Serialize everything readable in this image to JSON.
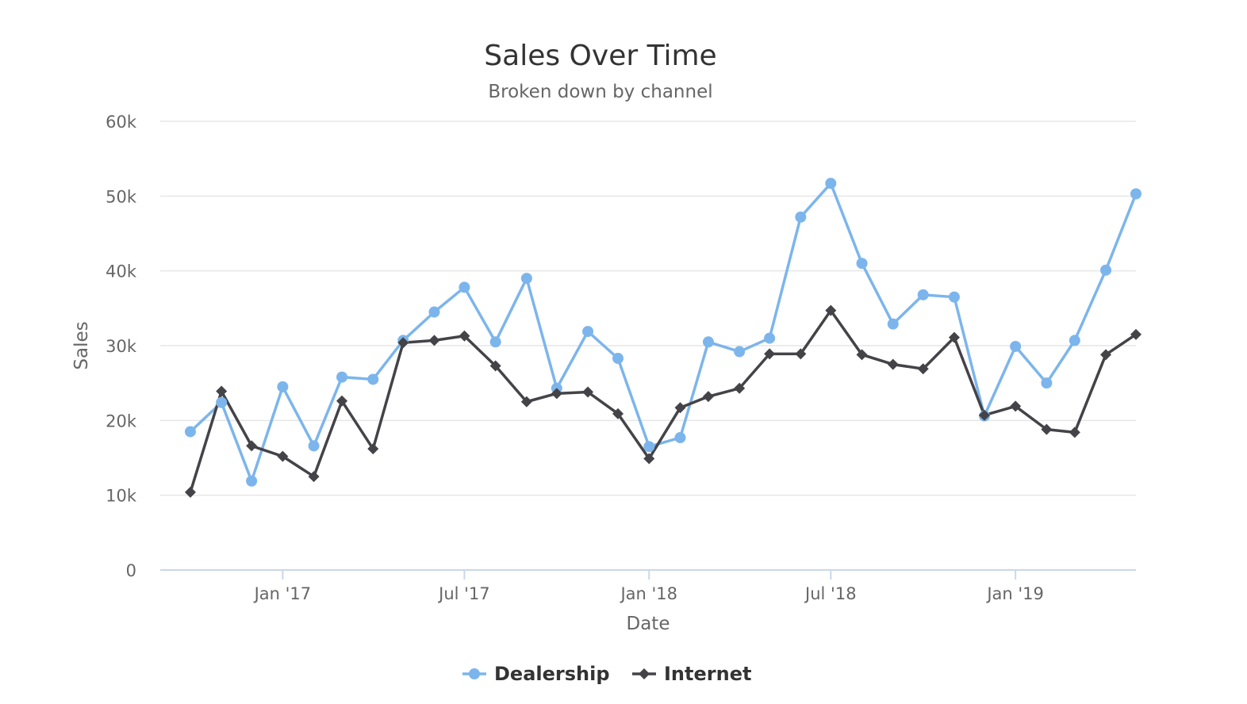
{
  "chart_data": {
    "type": "line",
    "title": "Sales Over Time",
    "subtitle": "Broken down by channel",
    "xlabel": "Date",
    "ylabel": "Sales",
    "ylim": [
      0,
      60000
    ],
    "xlim": [
      "2016-09-01",
      "2019-05-01"
    ],
    "y_ticks": [
      0,
      10000,
      20000,
      30000,
      40000,
      50000,
      60000
    ],
    "y_tick_labels": [
      "0",
      "10k",
      "20k",
      "30k",
      "40k",
      "50k",
      "60k"
    ],
    "x_ticks": [
      "2017-01-01",
      "2017-07-01",
      "2018-01-01",
      "2018-07-01",
      "2019-01-01"
    ],
    "x_tick_labels": [
      "Jan '17",
      "Jul '17",
      "Jan '18",
      "Jul '18",
      "Jan '19"
    ],
    "grid": true,
    "legend": "bottom-center",
    "x": [
      "2016-10-01",
      "2016-11-01",
      "2016-12-01",
      "2017-01-01",
      "2017-02-01",
      "2017-03-01",
      "2017-04-01",
      "2017-05-01",
      "2017-06-01",
      "2017-07-01",
      "2017-08-01",
      "2017-09-01",
      "2017-10-01",
      "2017-11-01",
      "2017-12-01",
      "2018-01-01",
      "2018-02-01",
      "2018-03-01",
      "2018-04-01",
      "2018-05-01",
      "2018-06-01",
      "2018-07-01",
      "2018-08-01",
      "2018-09-01",
      "2018-10-01",
      "2018-11-01",
      "2018-12-01",
      "2019-01-01",
      "2019-02-01",
      "2019-03-01",
      "2019-04-01",
      "2019-05-01"
    ],
    "series": [
      {
        "name": "Dealership",
        "color": "#7cb5ec",
        "marker": "circle",
        "values": [
          18500,
          22400,
          11900,
          24500,
          16600,
          25800,
          25500,
          30700,
          34500,
          37800,
          30500,
          39000,
          24300,
          31900,
          28300,
          16500,
          17700,
          30500,
          29200,
          31000,
          47200,
          51700,
          41000,
          32900,
          36800,
          36500,
          20600,
          29900,
          25000,
          30700,
          40100,
          50300
        ]
      },
      {
        "name": "Internet",
        "color": "#434348",
        "marker": "diamond",
        "values": [
          10400,
          23900,
          16600,
          15200,
          12500,
          22600,
          16200,
          30400,
          30700,
          31300,
          27300,
          22500,
          23600,
          23800,
          20900,
          14900,
          21700,
          23200,
          24300,
          28900,
          28900,
          34700,
          28800,
          27500,
          26900,
          31100,
          20700,
          21900,
          18800,
          18400,
          28800,
          31500
        ]
      }
    ]
  }
}
